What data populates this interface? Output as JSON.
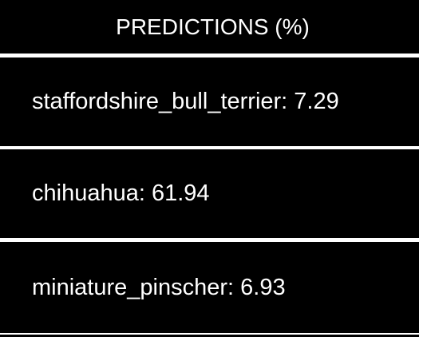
{
  "header": {
    "title": "PREDICTIONS (%)"
  },
  "predictions": [
    {
      "text": "staffordshire_bull_terrier: 7.29"
    },
    {
      "text": "chihuahua: 61.94"
    },
    {
      "text": "miniature_pinscher: 6.93"
    }
  ],
  "colors": {
    "background": "#000000",
    "text": "#ffffff",
    "divider": "#ffffff"
  }
}
